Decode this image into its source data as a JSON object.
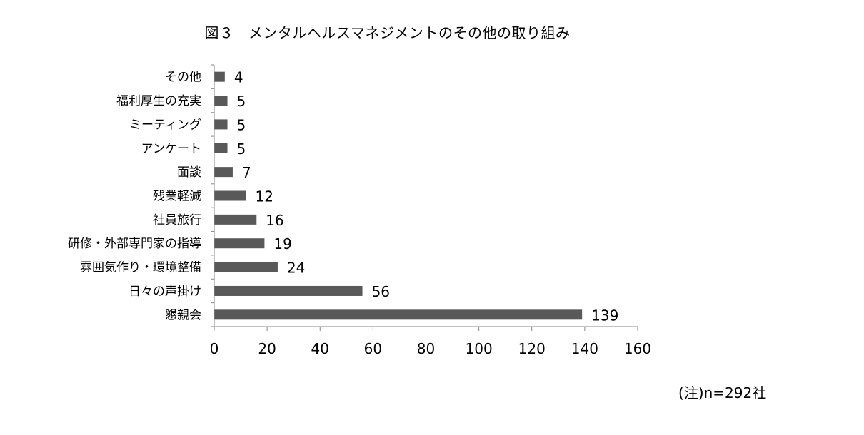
{
  "chart_data": {
    "type": "bar",
    "orientation": "horizontal",
    "title": "図３　メンタルヘルスマネジメントのその他の取り組み",
    "categories": [
      "その他",
      "福利厚生の充実",
      "ミーティング",
      "アンケート",
      "面談",
      "残業軽減",
      "社員旅行",
      "研修・外部専門家の指導",
      "雰囲気作り・環境整備",
      "日々の声掛け",
      "懇親会"
    ],
    "values": [
      4,
      5,
      5,
      5,
      7,
      12,
      16,
      19,
      24,
      56,
      139
    ],
    "xlim": [
      0,
      160
    ],
    "xticks": [
      0,
      20,
      40,
      60,
      80,
      100,
      120,
      140,
      160
    ],
    "grid": false,
    "legend": "none",
    "note": "(注)n=292社",
    "colors": {
      "bar": "#595959",
      "axis": "#868686"
    }
  }
}
